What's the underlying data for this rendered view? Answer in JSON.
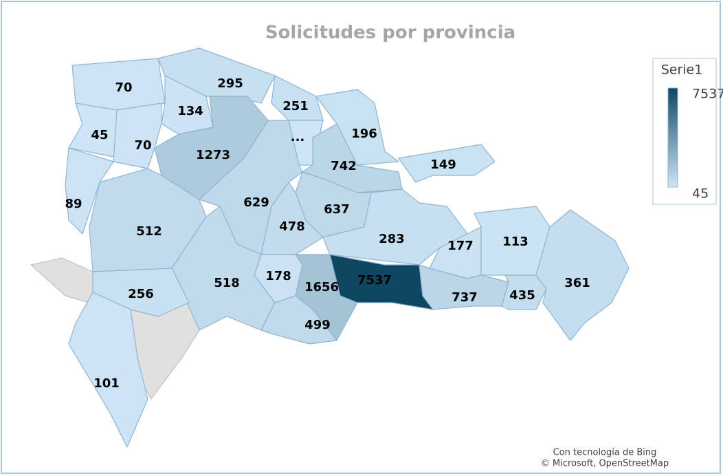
{
  "chart_data": {
    "type": "map",
    "title": "Solicitudes por provincia",
    "legend_title": "Serie1",
    "values": [
      70,
      295,
      134,
      251,
      null,
      196,
      45,
      70,
      1273,
      742,
      149,
      89,
      629,
      637,
      512,
      478,
      283,
      177,
      113,
      178,
      1656,
      7537,
      518,
      256,
      737,
      435,
      361,
      499,
      101
    ],
    "value_labels": [
      "70",
      "295",
      "134",
      "251",
      "...",
      "196",
      "45",
      "70",
      "1273",
      "742",
      "149",
      "89",
      "629",
      "637",
      "512",
      "478",
      "283",
      "177",
      "113",
      "178",
      "1656",
      "7537",
      "518",
      "256",
      "737",
      "435",
      "361",
      "499",
      "101"
    ],
    "colorscale": {
      "min": 45,
      "max": 7537,
      "colors": [
        "#cde5f5",
        "#0f4761"
      ]
    },
    "no_data_color": "#e0e0e0",
    "credits": [
      "Con tecnología de Bing",
      "© Microsoft, OpenStreetMap"
    ]
  }
}
